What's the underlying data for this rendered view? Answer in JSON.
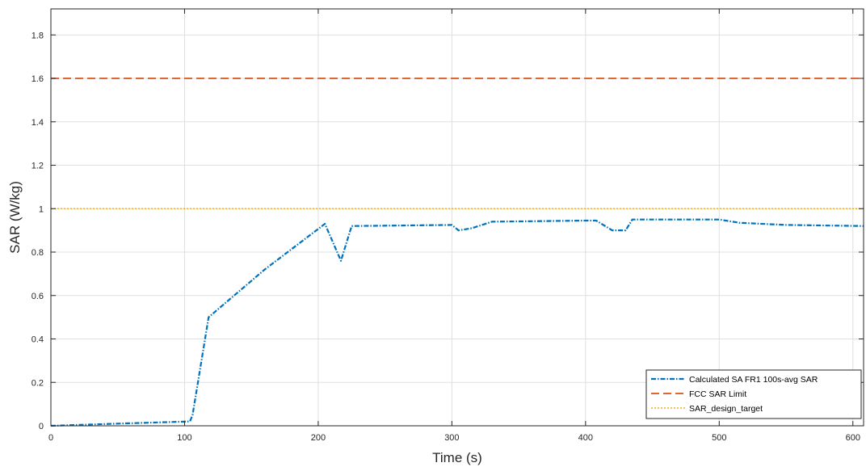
{
  "chart_data": {
    "type": "line",
    "title": "",
    "xlabel": "Time (s)",
    "ylabel": "SAR (W/kg)",
    "xlim": [
      0,
      608
    ],
    "ylim": [
      0,
      1.92
    ],
    "xticks": [
      0,
      100,
      200,
      300,
      400,
      500,
      600
    ],
    "xtick_labels": [
      "0",
      "100",
      "200",
      "300",
      "400",
      "500",
      "600"
    ],
    "yticks": [
      0,
      0.2,
      0.4,
      0.6,
      0.8,
      1,
      1.2,
      1.4,
      1.6,
      1.8
    ],
    "ytick_labels": [
      "0",
      "0.2",
      "0.4",
      "0.6",
      "0.8",
      "1",
      "1.2",
      "1.4",
      "1.6",
      "1.8"
    ],
    "grid": true,
    "legend_position": "bottom-right",
    "series": [
      {
        "name": "Calculated SA FR1 100s-avg SAR",
        "color": "#0072BD",
        "line_style": "dash-dot",
        "x": [
          0,
          50,
          104,
          106,
          118,
          160,
          205,
          217,
          225,
          300,
          305,
          315,
          330,
          400,
          408,
          420,
          430,
          435,
          500,
          515,
          550,
          608
        ],
        "y": [
          0,
          0.01,
          0.02,
          0.05,
          0.5,
          0.72,
          0.93,
          0.76,
          0.92,
          0.925,
          0.9,
          0.91,
          0.94,
          0.945,
          0.945,
          0.9,
          0.9,
          0.95,
          0.95,
          0.935,
          0.925,
          0.92
        ]
      },
      {
        "name": "FCC SAR Limit",
        "color": "#D95319",
        "line_style": "dashed",
        "x": [
          0,
          608
        ],
        "y": [
          1.6,
          1.6
        ]
      },
      {
        "name": "SAR_design_target",
        "color": "#EDB120",
        "line_style": "dotted",
        "x": [
          0,
          608
        ],
        "y": [
          1.0,
          1.0
        ]
      }
    ]
  }
}
